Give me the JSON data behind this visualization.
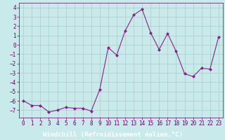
{
  "x": [
    0,
    1,
    2,
    3,
    4,
    5,
    6,
    7,
    8,
    9,
    10,
    11,
    12,
    13,
    14,
    15,
    16,
    17,
    18,
    19,
    20,
    21,
    22,
    23
  ],
  "y": [
    -6,
    -6.5,
    -6.5,
    -7.2,
    -7,
    -6.7,
    -6.8,
    -6.8,
    -7.1,
    -4.8,
    -0.3,
    -1.1,
    1.5,
    3.2,
    3.8,
    1.3,
    -0.5,
    1.2,
    -0.7,
    -3.1,
    -3.4,
    -2.5,
    -2.6,
    0.8
  ],
  "line_color": "#882288",
  "marker": "D",
  "marker_size": 2.0,
  "bg_color": "#c8eaea",
  "grid_color": "#b0c8c8",
  "xlabel": "Windchill (Refroidissement éolien,°C)",
  "xlim": [
    -0.5,
    23.5
  ],
  "ylim": [
    -7.8,
    4.5
  ],
  "yticks": [
    -7,
    -6,
    -5,
    -4,
    -3,
    -2,
    -1,
    0,
    1,
    2,
    3,
    4
  ],
  "xticks": [
    0,
    1,
    2,
    3,
    4,
    5,
    6,
    7,
    8,
    9,
    10,
    11,
    12,
    13,
    14,
    15,
    16,
    17,
    18,
    19,
    20,
    21,
    22,
    23
  ],
  "tick_fontsize": 5.5,
  "xlabel_fontsize": 6.5,
  "label_color": "#660066",
  "bottom_bar_color": "#440066",
  "spine_color": "#660066"
}
